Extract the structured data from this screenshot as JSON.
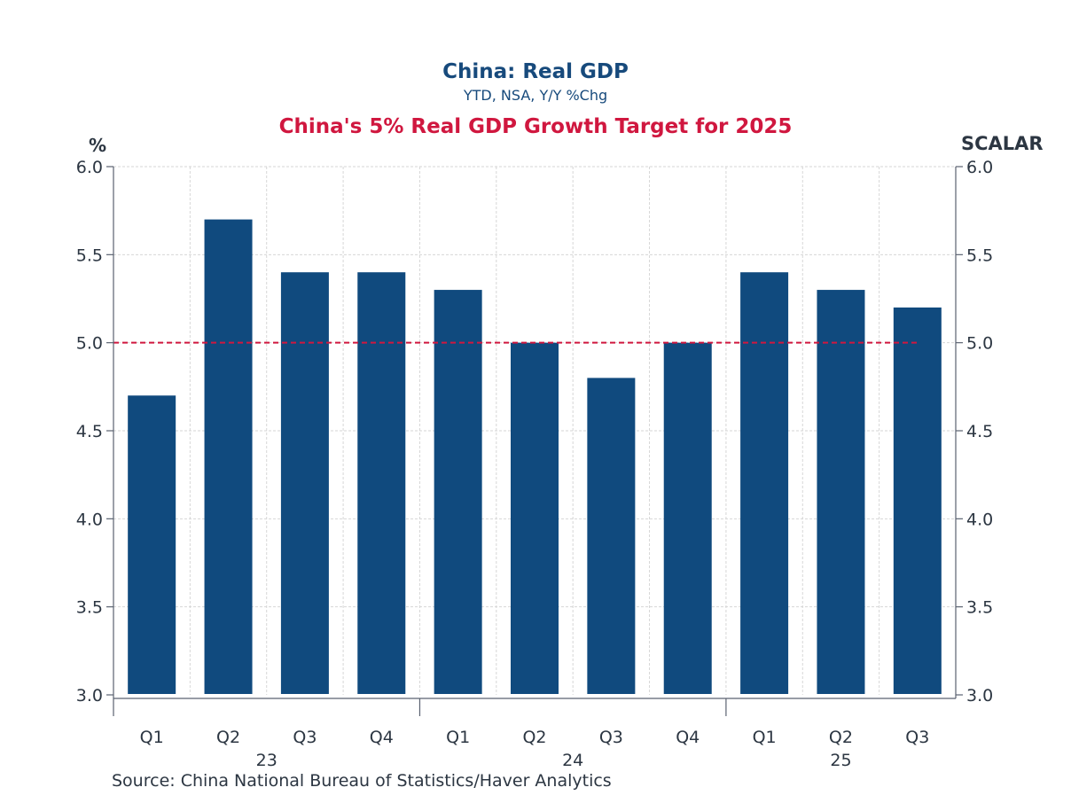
{
  "chart_data": {
    "type": "bar",
    "title": "China: Real GDP",
    "subtitle": "YTD, NSA, Y/Y %Chg",
    "annotation_title": "China's 5% Real GDP Growth Target for 2025",
    "ylabel_left": "%",
    "ylabel_right": "SCALAR",
    "xlabel": "",
    "categories": [
      "Q1",
      "Q2",
      "Q3",
      "Q4",
      "Q1",
      "Q2",
      "Q3",
      "Q4",
      "Q1",
      "Q2",
      "Q3"
    ],
    "year_groups": [
      {
        "label": "23",
        "start": 0,
        "end": 3
      },
      {
        "label": "24",
        "start": 4,
        "end": 7
      },
      {
        "label": "25",
        "start": 8,
        "end": 10
      }
    ],
    "series": [
      {
        "name": "China: Real GDP YTD Y/Y %Chg",
        "color": "#104a7e",
        "values": [
          4.7,
          5.7,
          5.4,
          5.4,
          5.3,
          5.0,
          4.8,
          5.0,
          5.4,
          5.3,
          5.2
        ]
      }
    ],
    "reference_line": {
      "value": 5.0,
      "color": "#d0173f",
      "style": "dashed",
      "label": "5% target"
    },
    "ylim": [
      3.0,
      6.0
    ],
    "yticks": [
      "3.0",
      "3.5",
      "4.0",
      "4.5",
      "5.0",
      "5.5",
      "6.0"
    ],
    "grid": true,
    "legend": "none",
    "source": "Source:  China National Bureau of Statistics/Haver Analytics"
  }
}
